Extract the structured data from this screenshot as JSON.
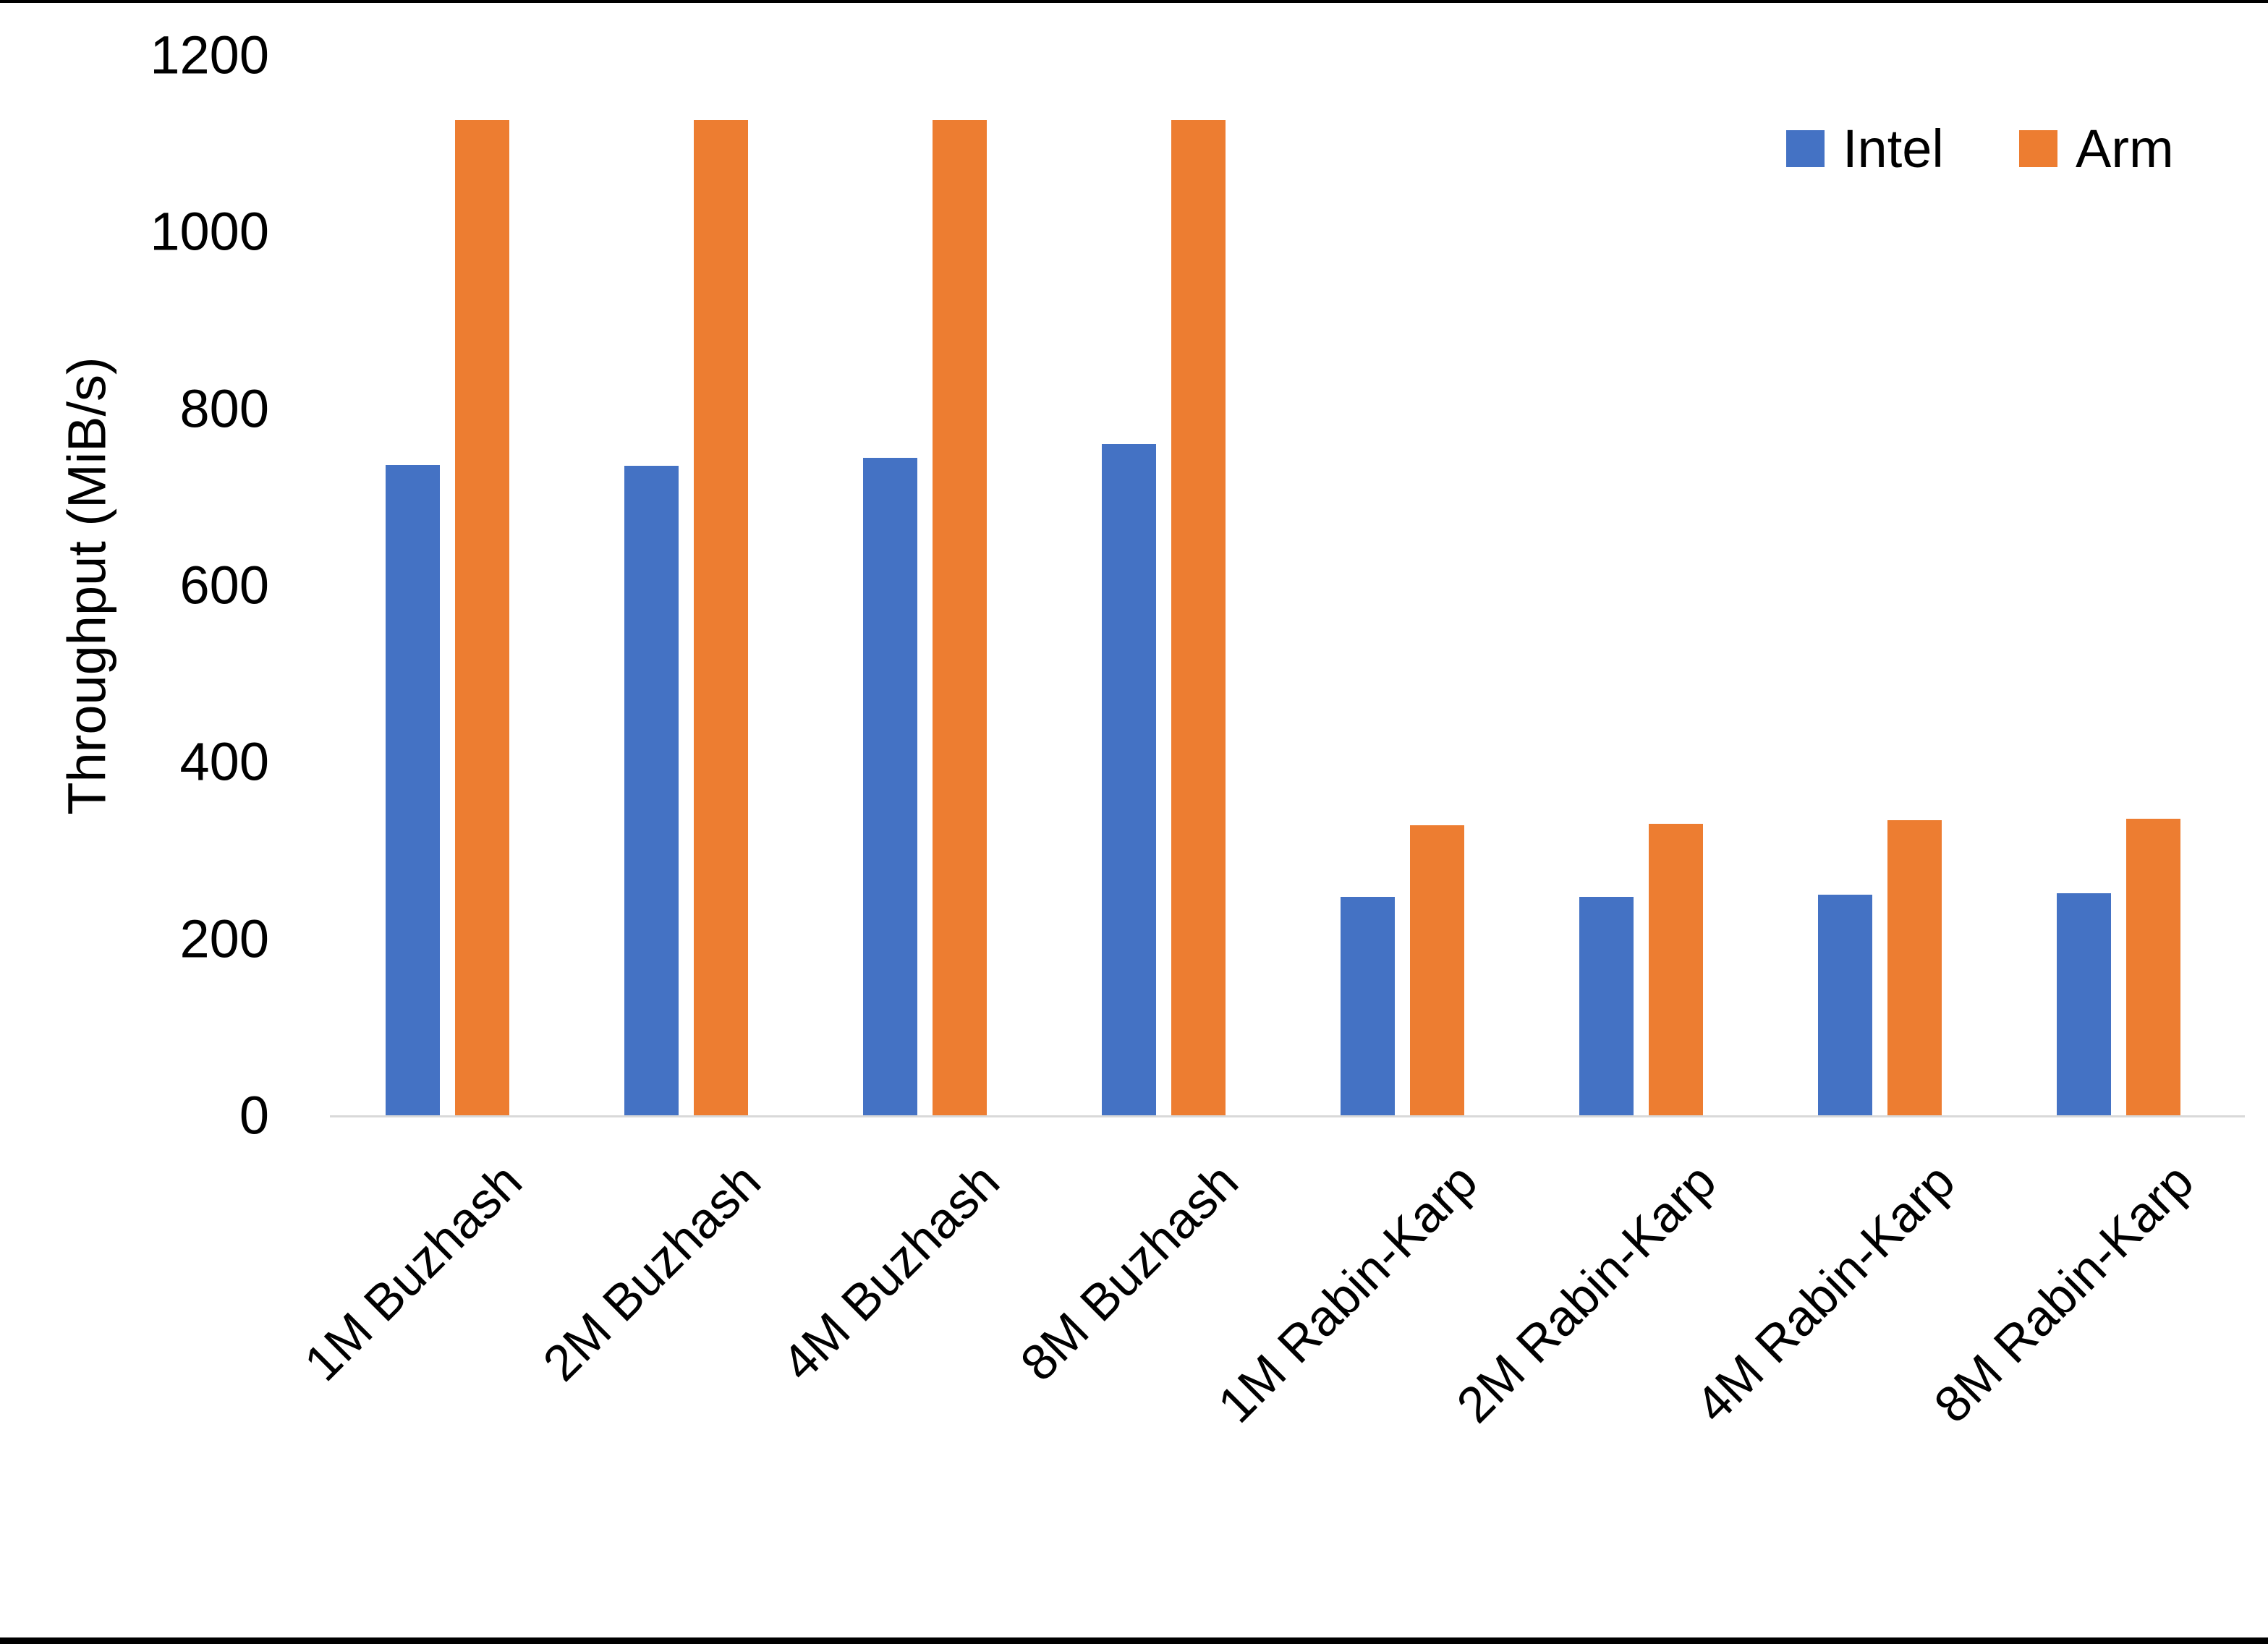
{
  "chart_data": {
    "type": "bar",
    "title": "",
    "xlabel": "",
    "ylabel": "Throughput (MiB/s)",
    "ylim": [
      0,
      1200
    ],
    "ytick_step": 200,
    "ytick_labels": [
      "0",
      "200",
      "400",
      "600",
      "800",
      "1000",
      "1200"
    ],
    "grid": false,
    "legend_position": "top-right",
    "categories": [
      "1M Buzhash",
      "2M Buzhash",
      "4M Buzhash",
      "8M Buzhash",
      "1M Rabin-Karp",
      "2M Rabin-Karp",
      "4M Rabin-Karp",
      "8M Rabin-Karp"
    ],
    "series": [
      {
        "name": "Intel",
        "color": "#4472C4",
        "values": [
          736,
          735,
          744,
          760,
          247,
          247,
          250,
          251
        ]
      },
      {
        "name": "Arm",
        "color": "#ED7D31",
        "values": [
          1126,
          1126,
          1126,
          1126,
          328,
          330,
          334,
          336
        ]
      }
    ],
    "colors": {
      "axis_line": "#d9d9d9",
      "text": "#000000",
      "background": "#ffffff",
      "frame_bars": "#000000"
    }
  }
}
